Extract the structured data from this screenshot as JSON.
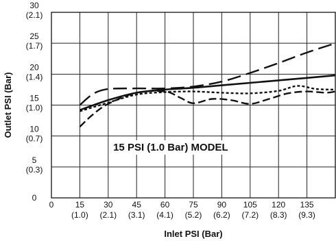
{
  "chart_data": {
    "type": "line",
    "xlabel": "Inlet PSI (Bar)",
    "ylabel": "Outlet PSI (Bar)",
    "annotation": "15 PSI (1.0 Bar) MODEL",
    "xlim": [
      0,
      150
    ],
    "ylim": [
      0,
      30
    ],
    "grid": true,
    "x_ticks": [
      {
        "value": 0,
        "label": "0",
        "sub": ""
      },
      {
        "value": 15,
        "label": "15",
        "sub": "(1.0)"
      },
      {
        "value": 30,
        "label": "30",
        "sub": "(2.1)"
      },
      {
        "value": 45,
        "label": "45",
        "sub": "(3.1)"
      },
      {
        "value": 60,
        "label": "60",
        "sub": "(4.1)"
      },
      {
        "value": 75,
        "label": "75",
        "sub": "(5.2)"
      },
      {
        "value": 90,
        "label": "90",
        "sub": "(6.2)"
      },
      {
        "value": 105,
        "label": "105",
        "sub": "(7.2)"
      },
      {
        "value": 120,
        "label": "120",
        "sub": "(8.3)"
      },
      {
        "value": 135,
        "label": "135",
        "sub": "(9.3)"
      }
    ],
    "y_ticks": [
      {
        "value": 0,
        "label": "0",
        "sub": ""
      },
      {
        "value": 5,
        "label": "5",
        "sub": "(0.3)"
      },
      {
        "value": 10,
        "label": "10",
        "sub": "(0.7)"
      },
      {
        "value": 15,
        "label": "15",
        "sub": "(1.0)"
      },
      {
        "value": 20,
        "label": "20",
        "sub": "(1.4)"
      },
      {
        "value": 25,
        "label": "25",
        "sub": "(1.7)"
      },
      {
        "value": 30,
        "label": "30",
        "sub": "(2.1)"
      }
    ],
    "series": [
      {
        "style": "solid",
        "x": [
          15,
          30,
          45,
          60,
          75,
          90,
          105,
          120,
          135,
          150
        ],
        "values": [
          14.2,
          15.8,
          17.0,
          17.5,
          17.8,
          18.2,
          18.6,
          19.0,
          19.4,
          19.8
        ]
      },
      {
        "style": "long-dash",
        "x": [
          15,
          22,
          30,
          45,
          60,
          75,
          90,
          105,
          120,
          135,
          150
        ],
        "values": [
          15.0,
          16.8,
          17.6,
          17.7,
          17.7,
          18.0,
          18.8,
          20.2,
          21.8,
          23.5,
          25.0
        ]
      },
      {
        "style": "dotted",
        "x": [
          15,
          30,
          45,
          60,
          75,
          90,
          105,
          120,
          130,
          140,
          150
        ],
        "values": [
          14.0,
          15.4,
          16.7,
          17.1,
          17.2,
          17.0,
          16.9,
          17.3,
          18.1,
          17.6,
          17.5
        ]
      },
      {
        "style": "dashed",
        "x": [
          15,
          22,
          30,
          45,
          60,
          68,
          75,
          85,
          95,
          105,
          115,
          125,
          135,
          145,
          150
        ],
        "values": [
          11.5,
          13.5,
          15.2,
          17.0,
          17.2,
          16.2,
          15.3,
          16.0,
          15.8,
          15.2,
          16.0,
          16.9,
          17.2,
          17.0,
          17.2
        ]
      }
    ]
  }
}
